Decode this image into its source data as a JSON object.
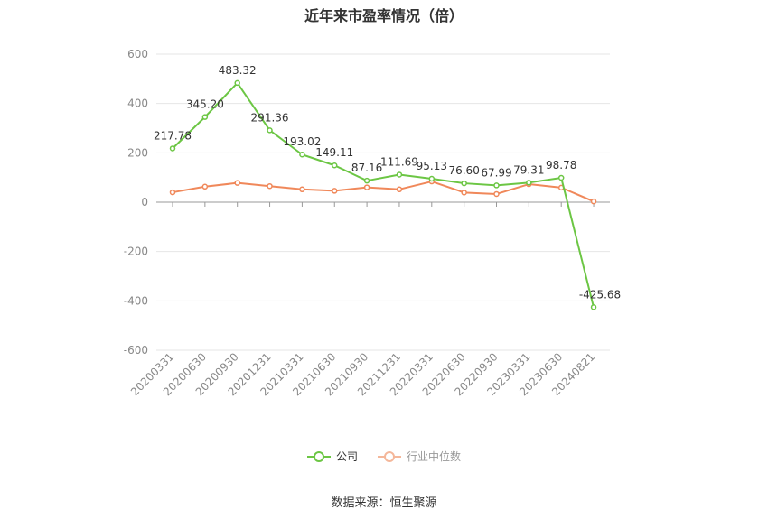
{
  "chart_data": {
    "type": "line",
    "title": "近年来市盈率情况（倍）",
    "categories": [
      "20200331",
      "20200630",
      "20200930",
      "20201231",
      "20210331",
      "20210630",
      "20210930",
      "20211231",
      "20220331",
      "20220630",
      "20220930",
      "20230331",
      "20230630",
      "20240821"
    ],
    "series": [
      {
        "name": "公司",
        "color": "#6CC644",
        "values": [
          217.78,
          345.2,
          483.32,
          291.36,
          193.02,
          149.11,
          87.16,
          111.69,
          95.13,
          76.6,
          67.99,
          79.31,
          98.78,
          -425.68
        ],
        "labels": [
          "217.78",
          "345.20",
          "483.32",
          "291.36",
          "193.02",
          "149.11",
          "87.16",
          "111.69",
          "95.13",
          "76.60",
          "67.99",
          "79.31",
          "98.78",
          "-425.68"
        ]
      },
      {
        "name": "行业中位数",
        "color": "#F0885A",
        "values": [
          40,
          63,
          78,
          65,
          52,
          46,
          60,
          52,
          84,
          39,
          33,
          73,
          59,
          3
        ]
      }
    ],
    "yticks": [
      "600",
      "400",
      "200",
      "0",
      "-200",
      "-400",
      "-600"
    ],
    "ylim": [
      -600,
      600
    ],
    "grid": true,
    "legend_position": "bottom"
  },
  "source": "数据来源：恒生聚源"
}
